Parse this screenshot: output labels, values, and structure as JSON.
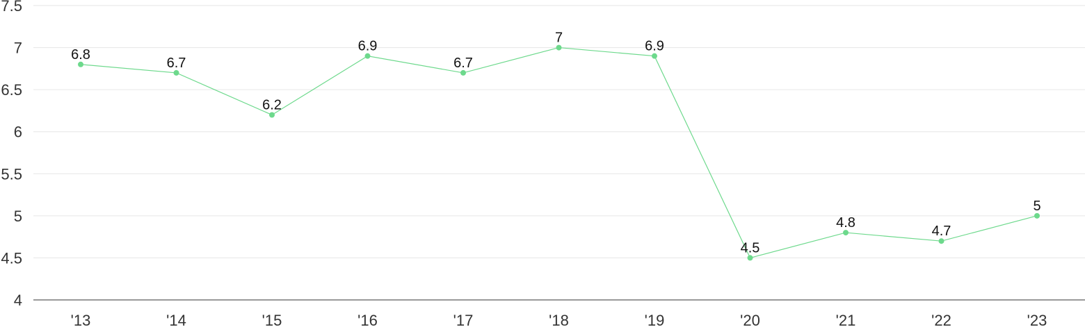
{
  "chart_data": {
    "type": "line",
    "title": "",
    "xlabel": "",
    "ylabel": "",
    "categories": [
      "'13",
      "'14",
      "'15",
      "'16",
      "'17",
      "'18",
      "'19",
      "'20",
      "'21",
      "'22",
      "'23"
    ],
    "series": [
      {
        "values": [
          6.8,
          6.7,
          6.2,
          6.9,
          6.7,
          7,
          6.9,
          4.5,
          4.8,
          4.7,
          5
        ],
        "color": "#6dd98c"
      }
    ],
    "ylim": [
      4,
      7.5
    ],
    "yticks": [
      "4",
      "4.5",
      "5",
      "5.5",
      "6",
      "6.5",
      "7",
      "7.5"
    ],
    "grid": true,
    "data_labels": true
  }
}
